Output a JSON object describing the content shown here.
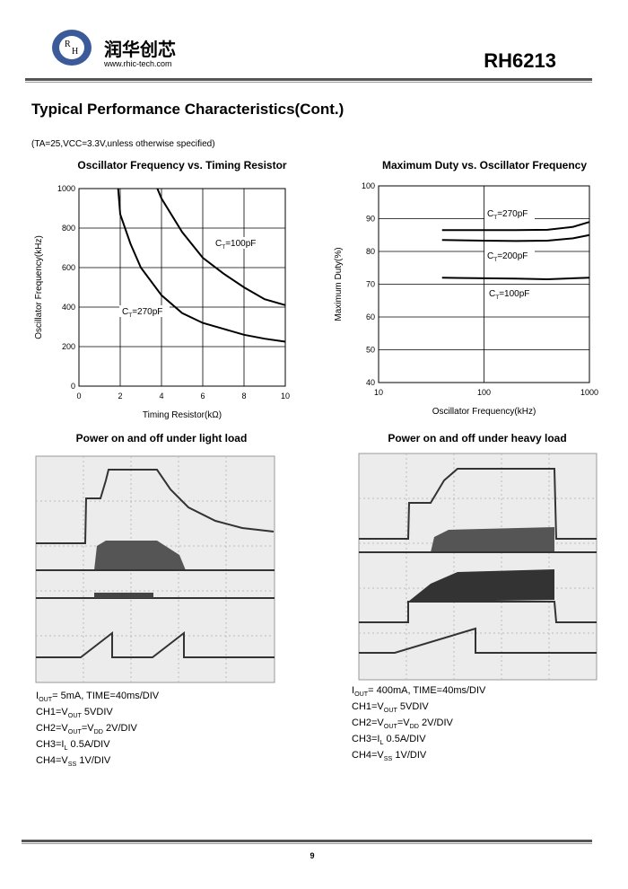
{
  "header": {
    "company": "润华创芯",
    "website": "www.rhic-tech.com",
    "part": "RH6213"
  },
  "section_title": "Typical Performance Characteristics(Cont.)",
  "conditions": "(TA=25,VCC=3.3V,unless otherwise specified)",
  "chart_data": [
    {
      "type": "line",
      "title": "Oscillator Frequency vs. Timing Resistor",
      "x_label": "Timing Resistor(kΩ)",
      "y_label": "Oscillator Frequency(kHz)",
      "xlim": [
        0,
        10
      ],
      "ylim": [
        0,
        1000
      ],
      "xticks": [
        0,
        2,
        4,
        6,
        8,
        10
      ],
      "yticks": [
        0,
        200,
        400,
        600,
        800,
        1000
      ],
      "grid": true,
      "series": [
        {
          "label_parts": [
            "C",
            "T",
            "=100pF"
          ],
          "color": "#000000",
          "x": [
            3.8,
            4,
            5,
            6,
            7,
            8,
            9,
            10
          ],
          "values": [
            1000,
            950,
            780,
            650,
            570,
            500,
            440,
            410
          ]
        },
        {
          "label_parts": [
            "C",
            "T",
            "=270pF"
          ],
          "color": "#000000",
          "x": [
            1.9,
            2,
            2.5,
            3,
            4,
            5,
            6,
            7,
            8,
            9,
            10
          ],
          "values": [
            1000,
            870,
            720,
            600,
            460,
            370,
            320,
            290,
            260,
            240,
            225
          ]
        }
      ]
    },
    {
      "type": "line",
      "title": "Maximum Duty vs. Oscillator Frequency",
      "x_label": "Oscillator Frequency(kHz)",
      "y_label": "Maximum Duty(%)",
      "xscale": "log",
      "xlim": [
        10,
        1000
      ],
      "ylim": [
        40,
        100
      ],
      "xticks": [
        10,
        100,
        1000
      ],
      "yticks": [
        40,
        50,
        60,
        70,
        80,
        90,
        100
      ],
      "grid": true,
      "series": [
        {
          "label_parts": [
            "C",
            "T",
            "=270pF"
          ],
          "color": "#000000",
          "x": [
            40,
            100,
            200,
            400,
            700,
            1000
          ],
          "values": [
            86.5,
            86.5,
            86.5,
            86.6,
            87.5,
            89
          ]
        },
        {
          "label_parts": [
            "C",
            "T",
            "=200pF"
          ],
          "color": "#000000",
          "x": [
            40,
            100,
            200,
            400,
            700,
            1000
          ],
          "values": [
            83.5,
            83.3,
            83.2,
            83.3,
            84,
            85
          ]
        },
        {
          "label_parts": [
            "C",
            "T",
            "=100pF"
          ],
          "color": "#000000",
          "x": [
            40,
            100,
            200,
            400,
            700,
            1000
          ],
          "values": [
            72,
            71.8,
            71.7,
            71.5,
            71.8,
            72
          ]
        }
      ]
    }
  ],
  "scopes": [
    {
      "title": "Power on and off under light load",
      "lines": [
        [
          "I",
          "OUT",
          "= 5mA, TIME=40ms/DIV"
        ],
        [
          "CH1=V",
          "OUT",
          "   5VDIV"
        ],
        [
          "CH2=V",
          "OUT",
          "=V",
          "DD",
          "   2V/DIV"
        ],
        [
          "CH3=I",
          "L",
          "  0.5A/DIV"
        ],
        [
          "CH4=V",
          "SS",
          "   1V/DIV"
        ]
      ]
    },
    {
      "title": "Power on and off under heavy load",
      "lines": [
        [
          "I",
          "OUT",
          "= 400mA, TIME=40ms/DIV"
        ],
        [
          "CH1=V",
          "OUT",
          "   5VDIV"
        ],
        [
          "CH2=V",
          "OUT",
          "=V",
          "DD",
          "   2V/DIV"
        ],
        [
          "CH3=I",
          "L",
          "  0.5A/DIV"
        ],
        [
          "CH4=V",
          "SS",
          "   1V/DIV"
        ]
      ]
    }
  ],
  "footer": {
    "page": "9"
  }
}
